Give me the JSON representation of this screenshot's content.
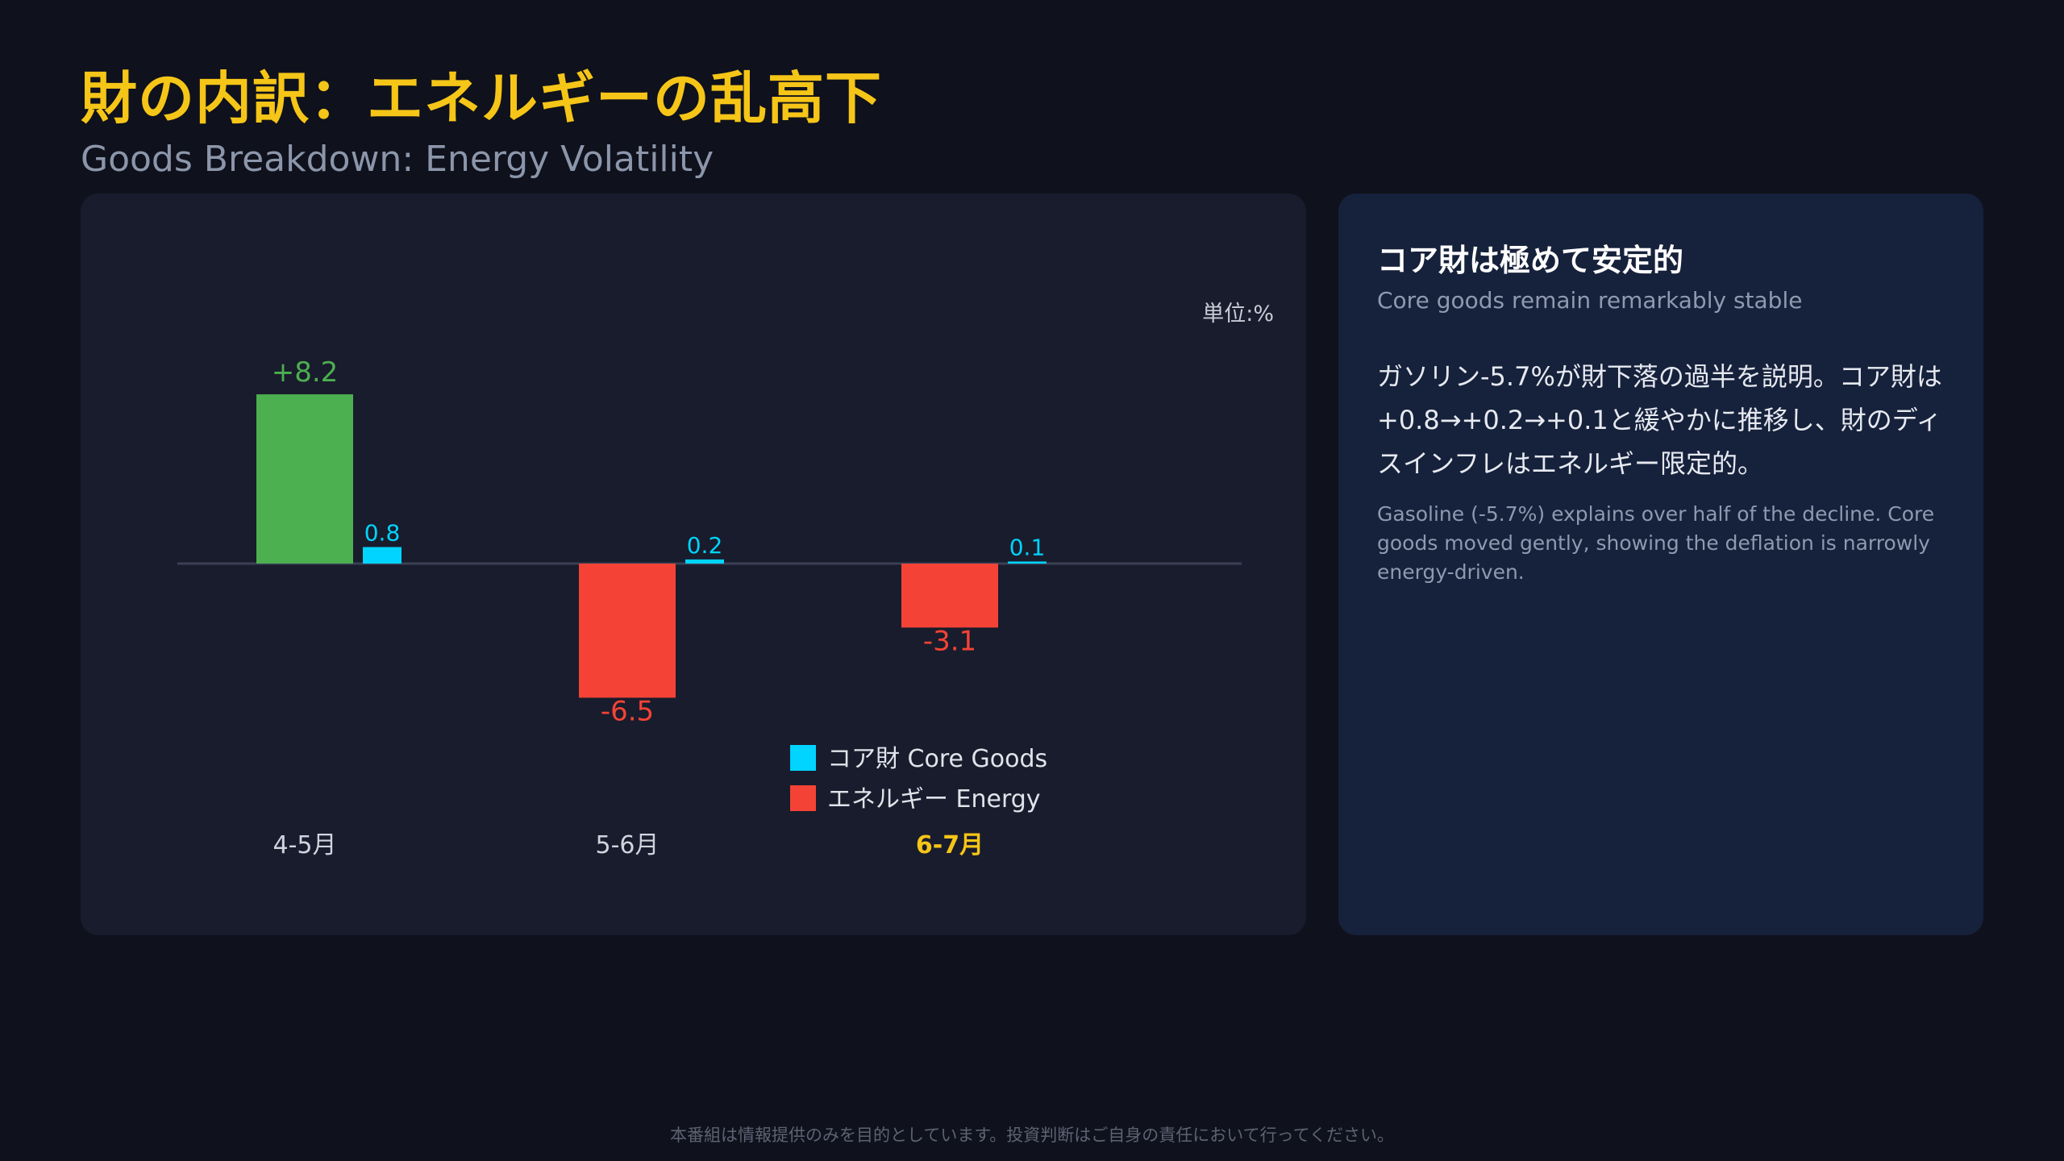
{
  "header": {
    "title": "財の内訳：エネルギーの乱高下",
    "subtitle": "Goods Breakdown: Energy Volatility"
  },
  "chart_data": {
    "type": "bar",
    "unit_label": "単位:%",
    "categories": [
      "4-5月",
      "5-6月",
      "6-7月"
    ],
    "highlight_category": "6-7月",
    "series": [
      {
        "name": "エネルギー Energy",
        "values": [
          8.2,
          -6.5,
          -3.1
        ],
        "labels": [
          "+8.2",
          "-6.5",
          "-3.1"
        ],
        "positive_color": "#4caf50",
        "negative_color": "#f44336"
      },
      {
        "name": "コア財 Core Goods",
        "values": [
          0.8,
          0.2,
          0.1
        ],
        "labels": [
          "0.8",
          "0.2",
          "0.1"
        ],
        "positive_color": "#00d4ff",
        "negative_color": "#00d4ff"
      }
    ],
    "legend": [
      {
        "name": "コア財 Core Goods",
        "color": "#00d4ff"
      },
      {
        "name": "エネルギー Energy",
        "color": "#f44336"
      }
    ],
    "legend_position": "bottom-center",
    "grid": false
  },
  "side_panel": {
    "heading": "コア財は極めて安定的",
    "subheading": "Core goods remain remarkably stable",
    "body": "ガソリン-5.7%が財下落の過半を説明。コア財は+0.8→+0.2→+0.1と緩やかに推移し、財のディスインフレはエネルギー限定的。",
    "note": "Gasoline (-5.7%) explains over half of the decline. Core goods moved gently, showing the deflation is narrowly energy-driven."
  },
  "footer": {
    "disclaimer": "本番組は情報提供のみを目的としています。投資判断はご自身の責任において行ってください。"
  },
  "colors": {
    "title": "#f5c518",
    "highlight_category": "#f5c518",
    "axis_label": "#d0d4de",
    "baseline": "#3a3f55"
  }
}
